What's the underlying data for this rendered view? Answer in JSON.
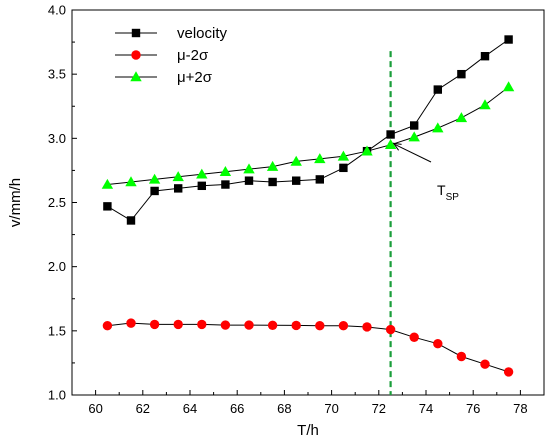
{
  "chart_data": {
    "type": "line",
    "xlabel": "T/h",
    "ylabel": "v/mm/h",
    "xlim": [
      59,
      79
    ],
    "ylim": [
      1.0,
      4.0
    ],
    "xticks": [
      60,
      62,
      64,
      66,
      68,
      70,
      72,
      74,
      76,
      78
    ],
    "yticks": [
      1.0,
      1.5,
      2.0,
      2.5,
      3.0,
      3.5,
      4.0
    ],
    "x": [
      60.5,
      61.5,
      62.5,
      63.5,
      64.5,
      65.5,
      66.5,
      67.5,
      68.5,
      69.5,
      70.5,
      71.5,
      72.5,
      73.5,
      74.5,
      75.5,
      76.5,
      77.5
    ],
    "series": [
      {
        "name": "velocity",
        "color": "#000000",
        "marker": "square",
        "values": [
          2.47,
          2.36,
          2.59,
          2.61,
          2.63,
          2.64,
          2.67,
          2.66,
          2.67,
          2.68,
          2.77,
          2.9,
          3.03,
          3.1,
          3.38,
          3.5,
          3.64,
          3.77
        ]
      },
      {
        "name": "μ-2σ",
        "color": "#ff0000",
        "marker": "circle",
        "values": [
          1.54,
          1.56,
          1.55,
          1.55,
          1.55,
          1.545,
          1.545,
          1.543,
          1.542,
          1.54,
          1.54,
          1.53,
          1.51,
          1.45,
          1.4,
          1.3,
          1.24,
          1.18
        ]
      },
      {
        "name": "μ+2σ",
        "color": "#00ff00",
        "marker": "triangle",
        "values": [
          2.64,
          2.66,
          2.68,
          2.7,
          2.72,
          2.74,
          2.76,
          2.78,
          2.82,
          2.84,
          2.86,
          2.9,
          2.95,
          3.01,
          3.08,
          3.16,
          3.26,
          3.4
        ]
      }
    ],
    "vline": {
      "x": 72.5,
      "color": "#1a9e3a"
    },
    "annotation": {
      "text": "T",
      "subscript": "SP",
      "x": 72.5,
      "y": 2.93
    },
    "legend_position": "top-left",
    "grid": false
  }
}
